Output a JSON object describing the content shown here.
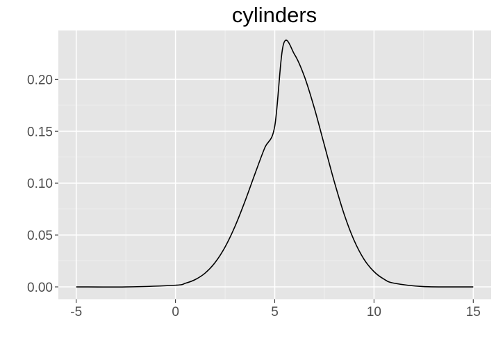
{
  "chart_data": {
    "type": "line",
    "title": "cylinders",
    "xlabel": "",
    "ylabel": "",
    "xlim": [
      -5.9,
      15.9
    ],
    "ylim": [
      -0.012,
      0.247
    ],
    "x_ticks": [
      -5,
      0,
      5,
      10,
      15
    ],
    "x_tick_labels": [
      "-5",
      "0",
      "5",
      "10",
      "15"
    ],
    "y_ticks": [
      0.0,
      0.05,
      0.1,
      0.15,
      0.2
    ],
    "y_tick_labels": [
      "0.00",
      "0.05",
      "0.10",
      "0.15",
      "0.20"
    ],
    "grid": true,
    "series": [
      {
        "color": "#000000",
        "x": [
          -5,
          -2.5,
          0,
          0.5,
          1,
          1.5,
          2,
          2.5,
          3,
          3.5,
          4,
          4.5,
          5,
          5.4375,
          6,
          6.5,
          7,
          7.5,
          8,
          8.5,
          9,
          9.5,
          10,
          10.5,
          11,
          12.5,
          15
        ],
        "y": [
          0.0,
          0.0,
          0.0016,
          0.0035,
          0.0071,
          0.0134,
          0.0236,
          0.0385,
          0.0584,
          0.0824,
          0.1087,
          0.1341,
          0.1548,
          0.2336,
          0.2238,
          0.2024,
          0.1719,
          0.1366,
          0.1013,
          0.0698,
          0.0447,
          0.0265,
          0.0147,
          0.0075,
          0.0036,
          0.0003,
          0.0
        ]
      }
    ]
  },
  "colors": {
    "panel_background": "#e5e5e5",
    "grid_major": "#ffffff",
    "grid_minor": "#f2f2f2",
    "tick_label": "#4d4d4d",
    "tick_mark": "#333333"
  }
}
